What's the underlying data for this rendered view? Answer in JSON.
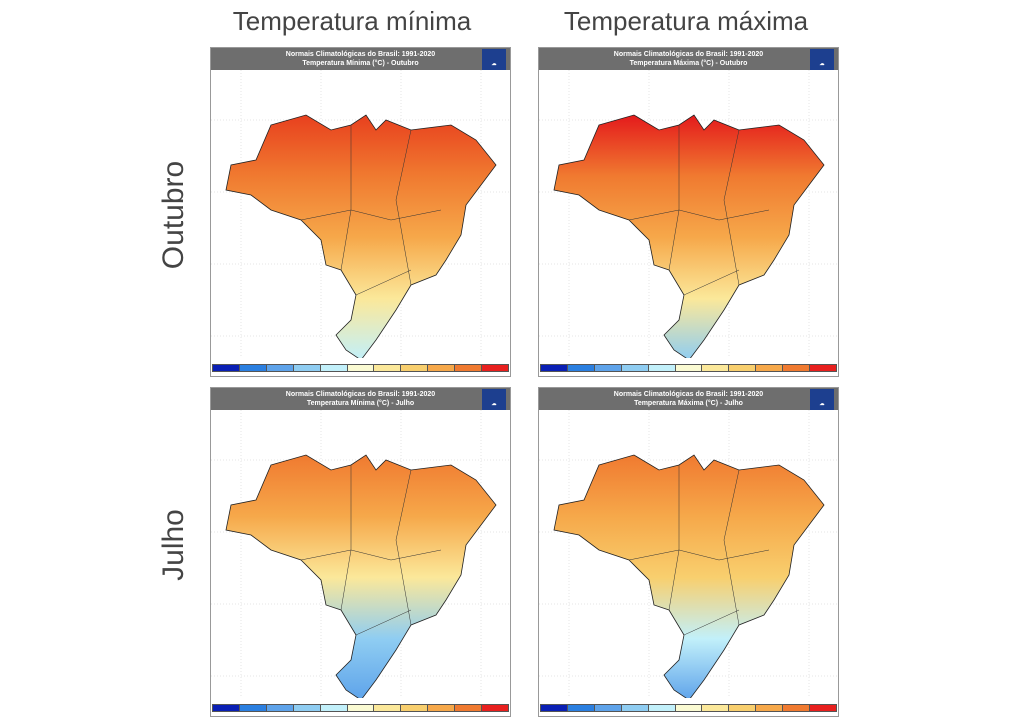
{
  "columns": [
    "Temperatura mínima",
    "Temperatura máxima"
  ],
  "rows": [
    "Outubro",
    "Julho"
  ],
  "panels": [
    {
      "line1": "Normais Climatológicas do Brasil: 1991-2020",
      "line2": "Temperatura Mínima (°C) - Outubro",
      "logo": "INMET",
      "variable": "min",
      "month": "Outubro"
    },
    {
      "line1": "Normais Climatológicas do Brasil: 1991-2020",
      "line2": "Temperatura Máxima (°C) - Outubro",
      "logo": "INMET",
      "variable": "max",
      "month": "Outubro"
    },
    {
      "line1": "Normais Climatológicas do Brasil: 1991-2020",
      "line2": "Temperatura Mínima (°C) - Julho",
      "logo": "INMET",
      "variable": "min",
      "month": "Julho"
    },
    {
      "line1": "Normais Climatológicas do Brasil: 1991-2020",
      "line2": "Temperatura Máxima (°C) - Julho",
      "logo": "INMET",
      "variable": "max",
      "month": "Julho"
    }
  ],
  "colorbar_colors": [
    "#0a1fb4",
    "#2b7fe0",
    "#5ea3ea",
    "#8fcdf2",
    "#c2f0fa",
    "#fafad2",
    "#fbe89a",
    "#f8cf6e",
    "#f6a84a",
    "#f07a30",
    "#e8201e"
  ],
  "map_gradients": [
    [
      "#e8401e",
      "#f07a30",
      "#f6a84a",
      "#fbe89a",
      "#c2f0fa"
    ],
    [
      "#e41a1c",
      "#f07a30",
      "#f6a84a",
      "#fbe89a",
      "#8fcdf2"
    ],
    [
      "#f07a30",
      "#f6a84a",
      "#fbe89a",
      "#8fcdf2",
      "#5ea3ea"
    ],
    [
      "#f07a30",
      "#f6a84a",
      "#f8cf6e",
      "#c2f0fa",
      "#5ea3ea"
    ]
  ]
}
